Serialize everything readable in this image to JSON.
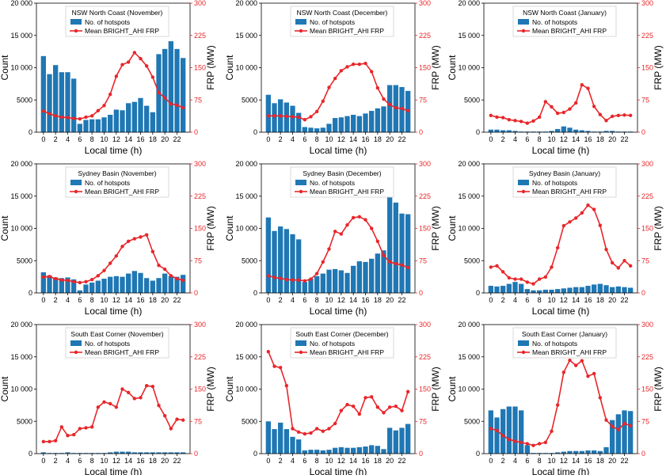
{
  "figure": {
    "xlabel": "Local time (h)",
    "ylabel_left": "Count",
    "ylabel_right": "FRP (MW)",
    "left_ticks": [
      "0",
      "5000",
      "10 000",
      "15 000",
      "20 000"
    ],
    "right_ticks": [
      "0",
      "75",
      "150",
      "225",
      "300"
    ],
    "x_ticks": [
      "0",
      "2",
      "4",
      "6",
      "8",
      "10",
      "12",
      "14",
      "16",
      "18",
      "20",
      "22"
    ],
    "legend_bar": "No. of hotspots",
    "legend_line": "Mean BRIGHT_AHI FRP",
    "bar_color": "#1f77b4",
    "line_color": "#e8262a"
  },
  "chart_data": [
    {
      "type": "bar",
      "title": "NSW North Coast (November)",
      "x": [
        0,
        1,
        2,
        3,
        4,
        5,
        6,
        7,
        8,
        9,
        10,
        11,
        12,
        13,
        14,
        15,
        16,
        17,
        18,
        19,
        20,
        21,
        22,
        23
      ],
      "series": [
        {
          "name": "No. of hotspots",
          "axis": "left",
          "values": [
            11800,
            9000,
            10400,
            9300,
            9300,
            8300,
            1300,
            1900,
            2000,
            2000,
            2300,
            2700,
            3500,
            3400,
            4500,
            4700,
            5300,
            4100,
            3100,
            12100,
            12900,
            14100,
            12900,
            11500
          ]
        },
        {
          "name": "Mean BRIGHT_AHI FRP",
          "axis": "right",
          "values": [
            49,
            43,
            38,
            35,
            34,
            32,
            31,
            35,
            38,
            50,
            62,
            88,
            130,
            157,
            163,
            185,
            171,
            154,
            128,
            92,
            80,
            66,
            63,
            57
          ]
        }
      ],
      "ylim_left": [
        0,
        20000
      ],
      "ylim_right": [
        0,
        300
      ]
    },
    {
      "type": "bar",
      "title": "NSW North Coast (December)",
      "x": [
        0,
        1,
        2,
        3,
        4,
        5,
        6,
        7,
        8,
        9,
        10,
        11,
        12,
        13,
        14,
        15,
        16,
        17,
        18,
        19,
        20,
        21,
        22,
        23
      ],
      "series": [
        {
          "name": "No. of hotspots",
          "axis": "left",
          "values": [
            5800,
            4500,
            5100,
            4600,
            4100,
            3000,
            800,
            700,
            600,
            700,
            1300,
            2200,
            2300,
            2500,
            2700,
            2500,
            2900,
            3300,
            3700,
            4000,
            7300,
            7300,
            7000,
            6400
          ]
        },
        {
          "name": "Mean BRIGHT_AHI FRP",
          "axis": "right",
          "values": [
            38,
            38,
            38,
            37,
            36,
            35,
            29,
            36,
            48,
            72,
            104,
            125,
            143,
            152,
            158,
            158,
            160,
            141,
            103,
            77,
            64,
            57,
            55,
            50
          ]
        }
      ],
      "ylim_left": [
        0,
        20000
      ],
      "ylim_right": [
        0,
        300
      ]
    },
    {
      "type": "bar",
      "title": "NSW North Coast (January)",
      "x": [
        0,
        1,
        2,
        3,
        4,
        5,
        6,
        7,
        8,
        9,
        10,
        11,
        12,
        13,
        14,
        15,
        16,
        17,
        18,
        19,
        20,
        21,
        22,
        23
      ],
      "series": [
        {
          "name": "No. of hotspots",
          "axis": "left",
          "values": [
            400,
            400,
            300,
            300,
            200,
            100,
            100,
            100,
            100,
            100,
            200,
            500,
            900,
            700,
            400,
            300,
            200,
            100,
            100,
            200,
            200,
            100,
            100,
            100
          ]
        },
        {
          "name": "Mean BRIGHT_AHI FRP",
          "axis": "right",
          "values": [
            39,
            35,
            34,
            29,
            27,
            25,
            21,
            26,
            35,
            71,
            59,
            44,
            46,
            54,
            68,
            110,
            102,
            60,
            41,
            27,
            37,
            39,
            40,
            39
          ]
        }
      ],
      "ylim_left": [
        0,
        20000
      ],
      "ylim_right": [
        0,
        300
      ]
    },
    {
      "type": "bar",
      "title": "Sydney Basin (November)",
      "x": [
        0,
        1,
        2,
        3,
        4,
        5,
        6,
        7,
        8,
        9,
        10,
        11,
        12,
        13,
        14,
        15,
        16,
        17,
        18,
        19,
        20,
        21,
        22,
        23
      ],
      "series": [
        {
          "name": "No. of hotspots",
          "axis": "left",
          "values": [
            3200,
            2700,
            2400,
            2300,
            2400,
            2100,
            400,
            1300,
            1600,
            1900,
            2200,
            2500,
            2600,
            2500,
            3000,
            3400,
            3100,
            2300,
            1900,
            2300,
            3000,
            2600,
            2500,
            2800
          ]
        },
        {
          "name": "Mean BRIGHT_AHI FRP",
          "axis": "right",
          "values": [
            37,
            38,
            33,
            30,
            29,
            26,
            24,
            26,
            31,
            40,
            52,
            69,
            86,
            108,
            120,
            126,
            130,
            135,
            96,
            64,
            55,
            40,
            33,
            29
          ]
        }
      ],
      "ylim_left": [
        0,
        20000
      ],
      "ylim_right": [
        0,
        300
      ]
    },
    {
      "type": "bar",
      "title": "Sydney Basin (December)",
      "x": [
        0,
        1,
        2,
        3,
        4,
        5,
        6,
        7,
        8,
        9,
        10,
        11,
        12,
        13,
        14,
        15,
        16,
        17,
        18,
        19,
        20,
        21,
        22,
        23
      ],
      "series": [
        {
          "name": "No. of hotspots",
          "axis": "left",
          "values": [
            11700,
            9600,
            10300,
            9900,
            9100,
            8300,
            1700,
            2200,
            2600,
            3000,
            3600,
            3700,
            3500,
            3100,
            4200,
            4900,
            4800,
            5300,
            6100,
            6600,
            14800,
            14000,
            12300,
            12200
          ]
        },
        {
          "name": "Mean BRIGHT_AHI FRP",
          "axis": "right",
          "values": [
            40,
            36,
            34,
            31,
            30,
            30,
            28,
            32,
            45,
            72,
            102,
            143,
            137,
            158,
            175,
            177,
            170,
            150,
            120,
            87,
            72,
            68,
            65,
            59
          ]
        }
      ],
      "ylim_left": [
        0,
        20000
      ],
      "ylim_right": [
        0,
        300
      ]
    },
    {
      "type": "bar",
      "title": "Sydney Basin (January)",
      "x": [
        0,
        1,
        2,
        3,
        4,
        5,
        6,
        7,
        8,
        9,
        10,
        11,
        12,
        13,
        14,
        15,
        16,
        17,
        18,
        19,
        20,
        21,
        22,
        23
      ],
      "series": [
        {
          "name": "No. of hotspots",
          "axis": "left",
          "values": [
            1100,
            1000,
            1100,
            1400,
            1700,
            1400,
            600,
            400,
            400,
            500,
            500,
            600,
            700,
            800,
            900,
            900,
            1100,
            1300,
            1400,
            1200,
            900,
            1000,
            900,
            800
          ]
        },
        {
          "name": "Mean BRIGHT_AHI FRP",
          "axis": "right",
          "values": [
            60,
            63,
            49,
            35,
            32,
            32,
            25,
            21,
            32,
            37,
            60,
            105,
            156,
            165,
            174,
            186,
            204,
            194,
            157,
            101,
            70,
            58,
            75,
            63
          ]
        }
      ],
      "ylim_left": [
        0,
        20000
      ],
      "ylim_right": [
        0,
        300
      ]
    },
    {
      "type": "bar",
      "title": "South East Corner (November)",
      "x": [
        0,
        1,
        2,
        3,
        4,
        5,
        6,
        7,
        8,
        9,
        10,
        11,
        12,
        13,
        14,
        15,
        16,
        17,
        18,
        19,
        20,
        21,
        22,
        23
      ],
      "series": [
        {
          "name": "No. of hotspots",
          "axis": "left",
          "values": [
            200,
            100,
            100,
            100,
            200,
            100,
            100,
            100,
            100,
            100,
            100,
            200,
            300,
            300,
            300,
            200,
            200,
            200,
            200,
            200,
            200,
            200,
            200,
            200
          ]
        },
        {
          "name": "Mean BRIGHT_AHI FRP",
          "axis": "right",
          "values": [
            28,
            28,
            30,
            62,
            42,
            44,
            58,
            60,
            62,
            108,
            120,
            116,
            108,
            150,
            142,
            128,
            130,
            158,
            156,
            112,
            88,
            58,
            80,
            78
          ]
        }
      ],
      "ylim_left": [
        0,
        20000
      ],
      "ylim_right": [
        0,
        300
      ]
    },
    {
      "type": "bar",
      "title": "South East Corner (December)",
      "x": [
        0,
        1,
        2,
        3,
        4,
        5,
        6,
        7,
        8,
        9,
        10,
        11,
        12,
        13,
        14,
        15,
        16,
        17,
        18,
        19,
        20,
        21,
        22,
        23
      ],
      "series": [
        {
          "name": "No. of hotspots",
          "axis": "left",
          "values": [
            5000,
            3800,
            4800,
            3800,
            2600,
            2200,
            500,
            600,
            600,
            500,
            600,
            900,
            1000,
            900,
            900,
            1000,
            1100,
            1300,
            1200,
            700,
            4000,
            3600,
            4000,
            4600
          ]
        },
        {
          "name": "Mean BRIGHT_AHI FRP",
          "axis": "right",
          "values": [
            237,
            203,
            200,
            158,
            58,
            50,
            46,
            48,
            58,
            52,
            58,
            70,
            100,
            114,
            110,
            92,
            130,
            132,
            108,
            95,
            108,
            110,
            100,
            144
          ]
        }
      ],
      "ylim_left": [
        0,
        20000
      ],
      "ylim_right": [
        0,
        300
      ]
    },
    {
      "type": "bar",
      "title": "South East Corner (January)",
      "x": [
        0,
        1,
        2,
        3,
        4,
        5,
        6,
        7,
        8,
        9,
        10,
        11,
        12,
        13,
        14,
        15,
        16,
        17,
        18,
        19,
        20,
        21,
        22,
        23
      ],
      "series": [
        {
          "name": "No. of hotspots",
          "axis": "left",
          "values": [
            6700,
            5600,
            6900,
            7300,
            7300,
            6700,
            1300,
            100,
            100,
            100,
            100,
            200,
            300,
            400,
            400,
            400,
            500,
            500,
            400,
            1000,
            5200,
            6100,
            6700,
            6600
          ]
        },
        {
          "name": "Mean BRIGHT_AHI FRP",
          "axis": "right",
          "values": [
            58,
            54,
            42,
            33,
            29,
            26,
            23,
            19,
            23,
            26,
            52,
            113,
            189,
            217,
            205,
            216,
            180,
            186,
            130,
            78,
            63,
            56,
            70,
            65
          ]
        }
      ],
      "ylim_left": [
        0,
        20000
      ],
      "ylim_right": [
        0,
        300
      ]
    }
  ]
}
